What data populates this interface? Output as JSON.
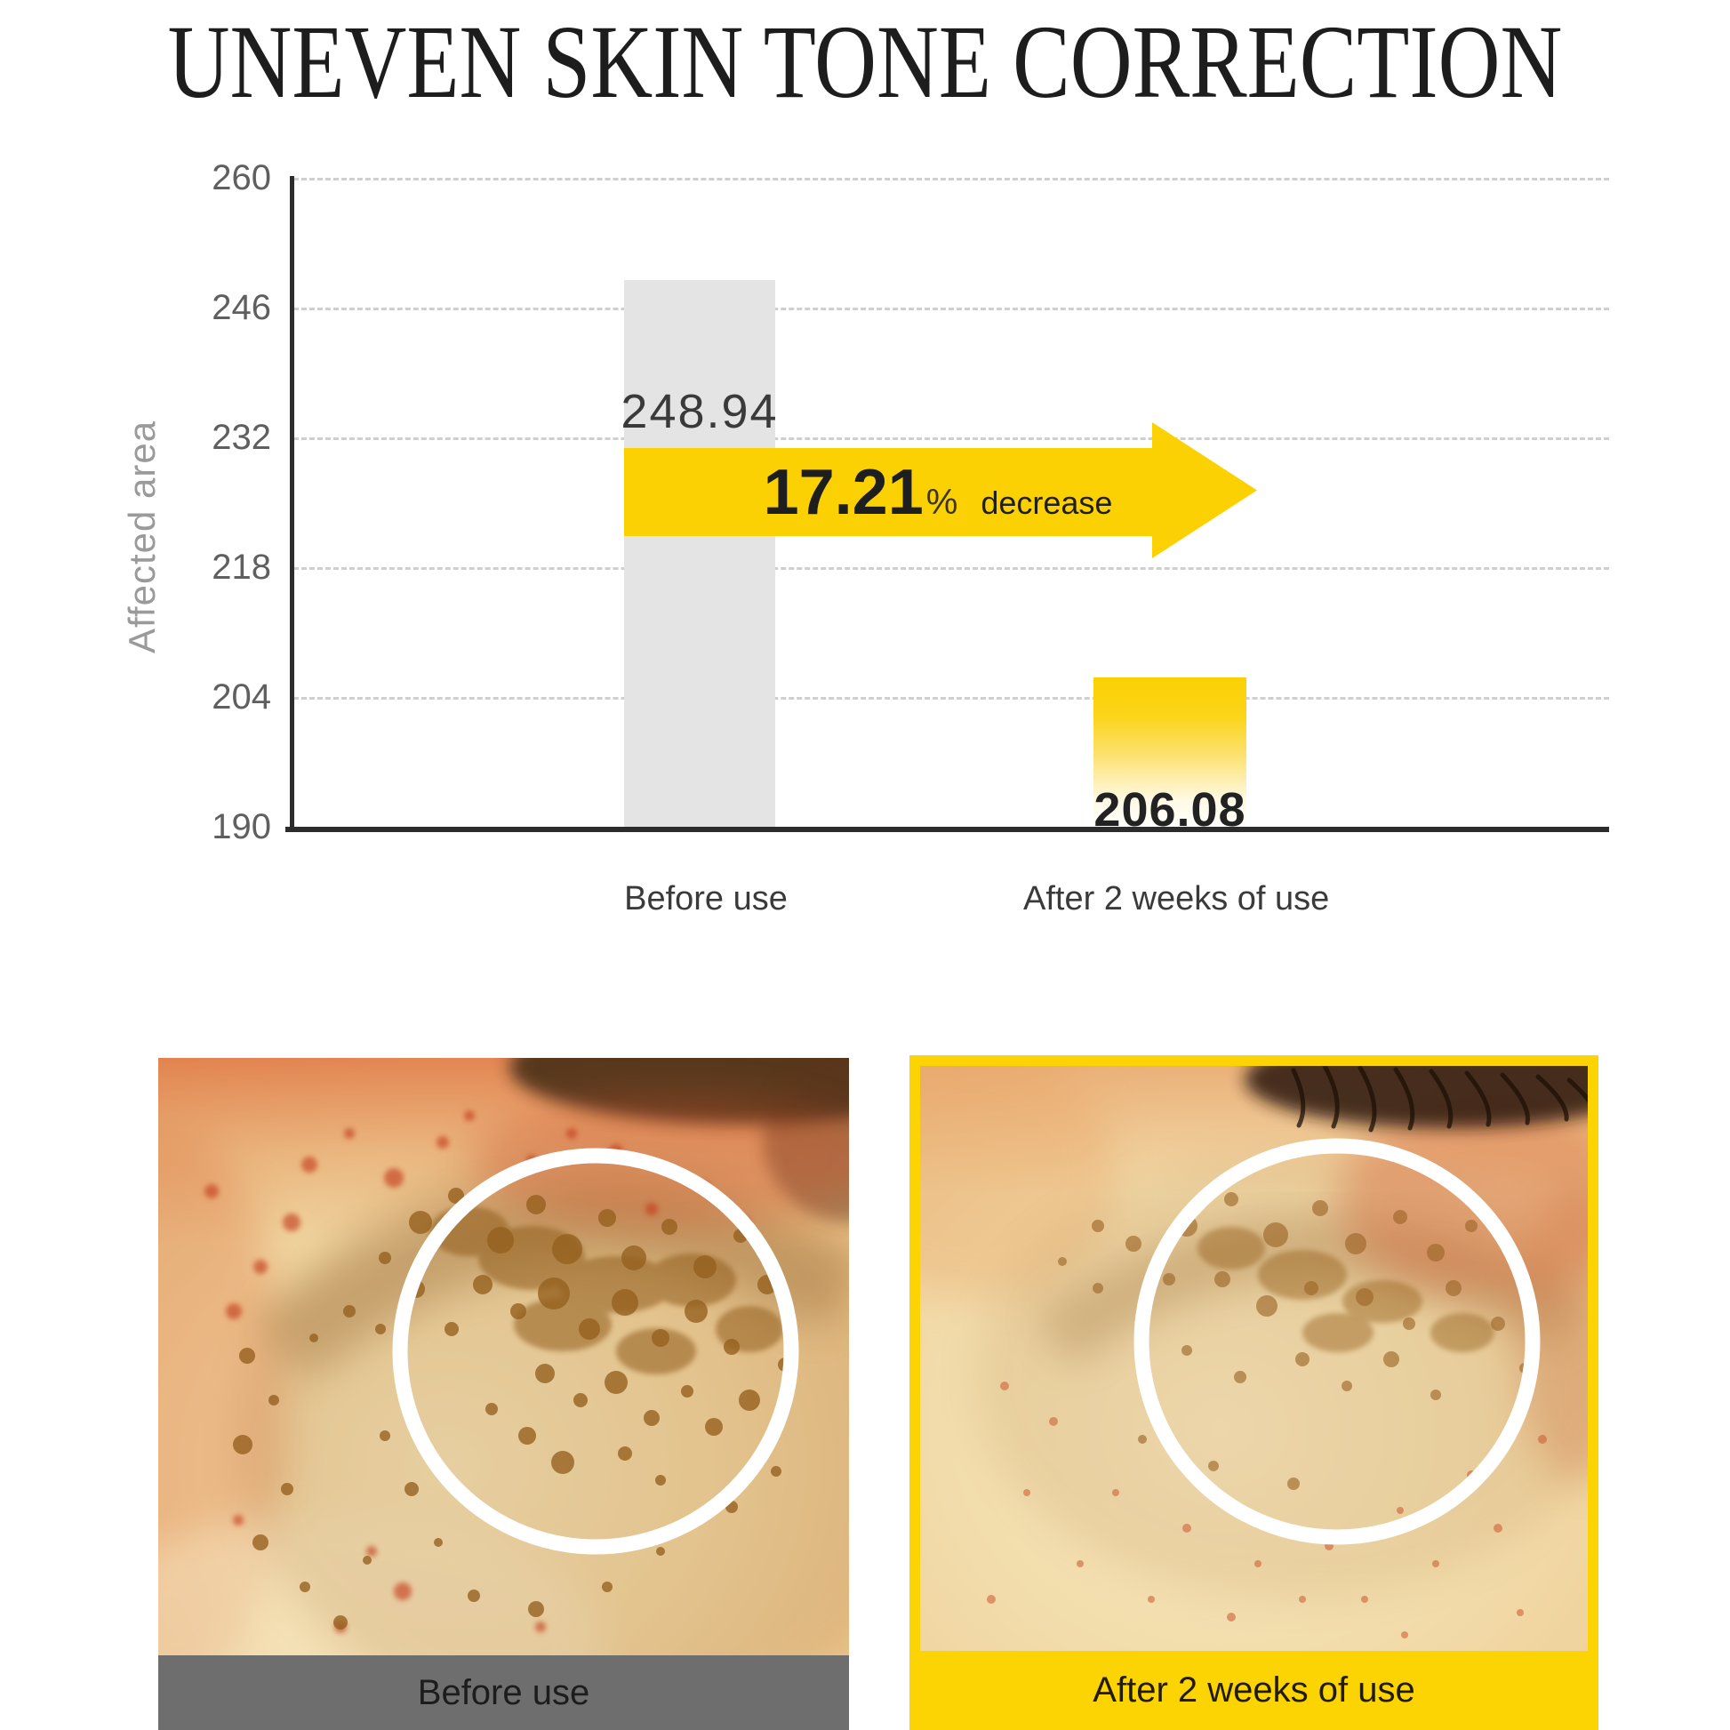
{
  "page": {
    "title": "UNEVEN SKIN TONE CORRECTION"
  },
  "chart_data": {
    "type": "bar",
    "title": "UNEVEN SKIN TONE CORRECTION",
    "ylabel": "Affected area",
    "xlabel": "",
    "categories": [
      "Before use",
      "After 2 weeks of use"
    ],
    "values": [
      248.94,
      206.08
    ],
    "value_labels": [
      "248.94",
      "206.08"
    ],
    "series": [
      {
        "name": "Affected area",
        "values": [
          248.94,
          206.08
        ]
      }
    ],
    "ylim": [
      190,
      260
    ],
    "yticks_top_down": [
      "260",
      "246",
      "232",
      "218",
      "204",
      "190"
    ],
    "grid": "horizontal dashed",
    "legend": "none",
    "bar_colors": [
      "#e4e4e4",
      "#fbd104"
    ],
    "annotation": {
      "value": "17.21",
      "unit": "%",
      "text": "decrease",
      "shape": "right-arrow",
      "color": "#fbd104"
    }
  },
  "comparison": {
    "before_label": "Before use",
    "after_label": "After 2 weeks of use"
  },
  "colors": {
    "accent_yellow": "#fcd303",
    "bar_gray": "#e4e4e4",
    "caption_gray": "#6e6e6e",
    "axis_dark": "#2c2c2c"
  }
}
